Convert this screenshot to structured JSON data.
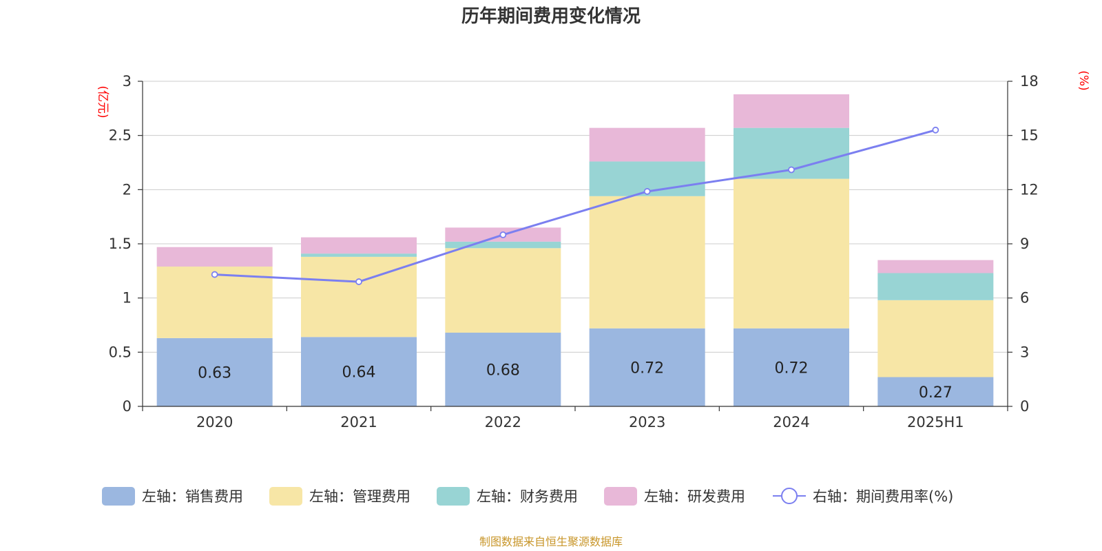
{
  "chart_data": {
    "type": "bar",
    "title": "历年期间费用变化情况",
    "categories": [
      "2020",
      "2021",
      "2022",
      "2023",
      "2024",
      "2025H1"
    ],
    "left_axis": {
      "unit": "(亿元)",
      "ylim": [
        0,
        3
      ],
      "ticks": [
        "0",
        "0.5",
        "1",
        "1.5",
        "2",
        "2.5",
        "3"
      ]
    },
    "right_axis": {
      "unit": "(%)",
      "ylim": [
        0,
        18
      ],
      "ticks": [
        "0",
        "3",
        "6",
        "9",
        "12",
        "15",
        "18"
      ]
    },
    "series": [
      {
        "name": "左轴：销售费用",
        "axis": "left",
        "kind": "bar",
        "color": "#9bb7e0",
        "values": [
          0.63,
          0.64,
          0.68,
          0.72,
          0.72,
          0.27
        ],
        "labels": [
          "0.63",
          "0.64",
          "0.68",
          "0.72",
          "0.72",
          "0.27"
        ]
      },
      {
        "name": "左轴：管理费用",
        "axis": "left",
        "kind": "bar",
        "color": "#f7e6a6",
        "values": [
          0.66,
          0.74,
          0.78,
          1.22,
          1.38,
          0.71
        ]
      },
      {
        "name": "左轴：财务费用",
        "axis": "left",
        "kind": "bar",
        "color": "#98d4d4",
        "values": [
          0.0,
          0.03,
          0.06,
          0.32,
          0.47,
          0.25
        ]
      },
      {
        "name": "左轴：研发费用",
        "axis": "left",
        "kind": "bar",
        "color": "#e8b8d8",
        "values": [
          0.18,
          0.15,
          0.13,
          0.31,
          0.31,
          0.12
        ]
      },
      {
        "name": "右轴：期间费用率(%)",
        "axis": "right",
        "kind": "line",
        "color": "#7b7ff0",
        "values": [
          7.3,
          6.9,
          9.5,
          11.9,
          13.1,
          15.3
        ]
      }
    ],
    "grid": true,
    "legend_position": "bottom"
  },
  "footer": {
    "source": "制图数据来自恒生聚源数据库"
  }
}
